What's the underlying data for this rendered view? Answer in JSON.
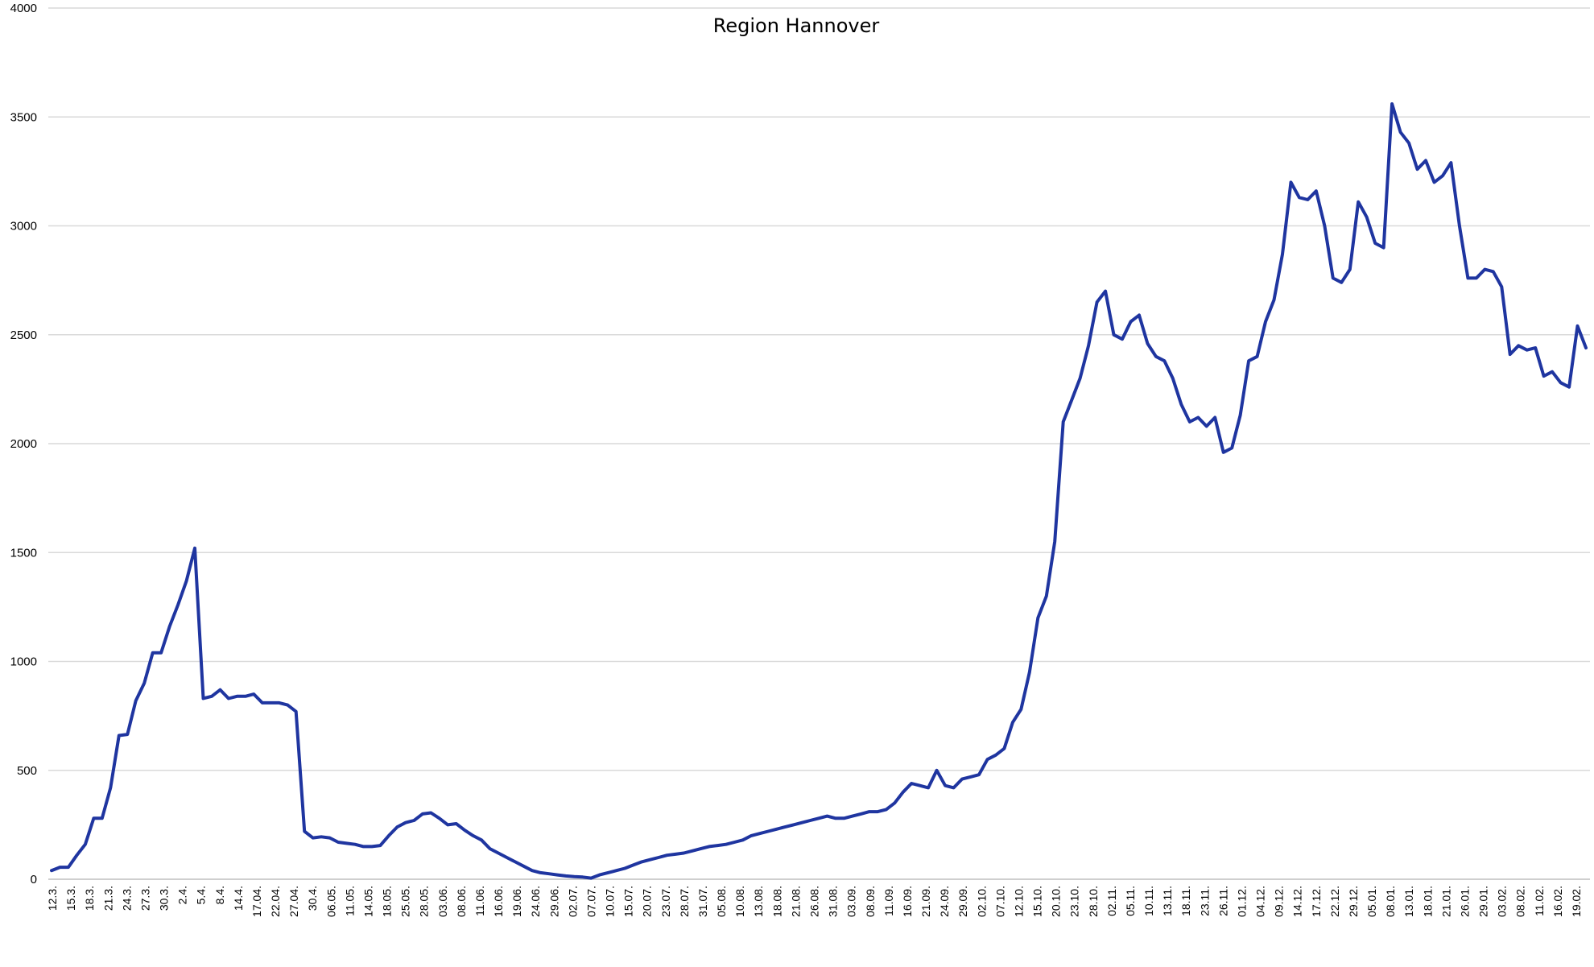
{
  "chart_data": {
    "type": "line",
    "title": "Region Hannover",
    "xlabel": "",
    "ylabel": "",
    "ylim": [
      0,
      4000
    ],
    "yticks": [
      0,
      500,
      1000,
      1500,
      2000,
      2500,
      3000,
      3500,
      4000
    ],
    "grid": true,
    "legend": "none",
    "colors": {
      "line": "#1f35a0",
      "grid": "#d9d9d9"
    },
    "x_tick_labels": [
      "12.3.",
      "15.3.",
      "18.3.",
      "21.3.",
      "24.3.",
      "27.3.",
      "30.3.",
      "2.4.",
      "5.4.",
      "8.4.",
      "14.4.",
      "17.04.",
      "22.04.",
      "27.04.",
      "30.4.",
      "06.05.",
      "11.05.",
      "14.05.",
      "18.05.",
      "25.05.",
      "28.05.",
      "03.06.",
      "08.06.",
      "11.06.",
      "16.06.",
      "19.06.",
      "24.06.",
      "29.06.",
      "02.07.",
      "07.07.",
      "10.07.",
      "15.07.",
      "20.07.",
      "23.07.",
      "28.07.",
      "31.07.",
      "05.08.",
      "10.08.",
      "13.08.",
      "18.08.",
      "21.08.",
      "26.08.",
      "31.08.",
      "03.09.",
      "08.09.",
      "11.09.",
      "16.09.",
      "21.09.",
      "24.09.",
      "29.09.",
      "02.10.",
      "07.10.",
      "12.10.",
      "15.10.",
      "20.10.",
      "23.10.",
      "28.10.",
      "02.11.",
      "05.11.",
      "10.11.",
      "13.11.",
      "18.11.",
      "23.11.",
      "26.11.",
      "01.12.",
      "04.12.",
      "09.12.",
      "14.12.",
      "17.12.",
      "22.12.",
      "29.12.",
      "05.01.",
      "08.01.",
      "13.01.",
      "18.01.",
      "21.01.",
      "26.01.",
      "29.01.",
      "03.02.",
      "08.02.",
      "11.02.",
      "16.02.",
      "19.02."
    ],
    "series": [
      {
        "values": [
          40,
          55,
          55,
          110,
          160,
          280,
          280,
          420,
          660,
          665,
          820,
          900,
          1040,
          1040,
          1160,
          1260,
          1370,
          1520,
          830,
          840,
          870,
          830,
          840,
          840,
          850,
          810,
          810,
          810,
          800,
          770,
          220,
          190,
          195,
          190,
          170,
          165,
          160,
          150,
          150,
          155,
          200,
          240,
          260,
          270,
          300,
          305,
          280,
          250,
          255,
          225,
          200,
          180,
          140,
          120,
          100,
          80,
          60,
          40,
          30,
          25,
          20,
          15,
          12,
          10,
          5,
          20,
          30,
          40,
          50,
          65,
          80,
          90,
          100,
          110,
          115,
          120,
          130,
          140,
          150,
          155,
          160,
          170,
          180,
          200,
          210,
          220,
          230,
          240,
          250,
          260,
          270,
          280,
          290,
          280,
          280,
          290,
          300,
          310,
          310,
          320,
          350,
          400,
          440,
          430,
          420,
          500,
          430,
          420,
          460,
          470,
          480,
          550,
          570,
          600,
          720,
          780,
          950,
          1200,
          1300,
          1550,
          2100,
          2200,
          2300,
          2450,
          2650,
          2700,
          2500,
          2480,
          2560,
          2590,
          2460,
          2400,
          2380,
          2300,
          2180,
          2100,
          2120,
          2080,
          2120,
          1960,
          1980,
          2130,
          2380,
          2400,
          2560,
          2660,
          2870,
          3200,
          3130,
          3120,
          3160,
          3000,
          2760,
          2740,
          2800,
          3110,
          3040,
          2920,
          2900,
          3560,
          3430,
          3380,
          3260,
          3300,
          3200,
          3230,
          3290,
          3000,
          2760,
          2760,
          2800,
          2790,
          2720,
          2410,
          2450,
          2430,
          2440,
          2310,
          2330,
          2280,
          2260,
          2540,
          2440
        ]
      }
    ]
  }
}
